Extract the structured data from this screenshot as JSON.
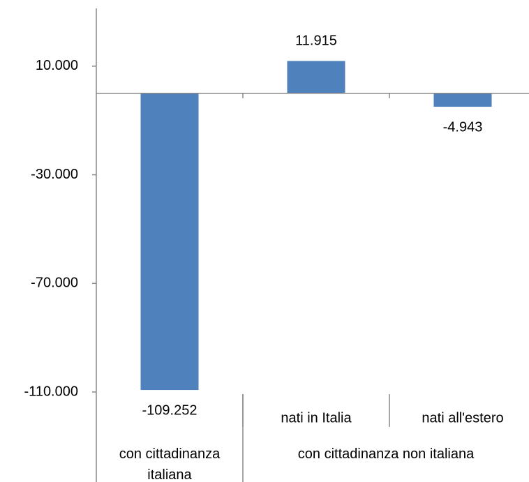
{
  "chart_data": {
    "type": "bar",
    "categories": [
      null,
      "nati in Italia",
      "nati all'estero"
    ],
    "category_groups": [
      {
        "label": "con cittadinanza italiana",
        "span": 1
      },
      {
        "label": "con cittadinanza non italiana",
        "span": 2
      }
    ],
    "values": [
      -109252,
      11915,
      -4943
    ],
    "value_labels": [
      "-109.252",
      "11.915",
      "-4.943"
    ],
    "color": "#4f81bd",
    "ylim": [
      -110000,
      30000
    ],
    "yticks": [
      {
        "value": 10000,
        "label": "10.000"
      },
      {
        "value": -30000,
        "label": "-30.000"
      },
      {
        "value": -70000,
        "label": "-70.000"
      },
      {
        "value": -110000,
        "label": "-110.000"
      }
    ],
    "grid": false
  }
}
